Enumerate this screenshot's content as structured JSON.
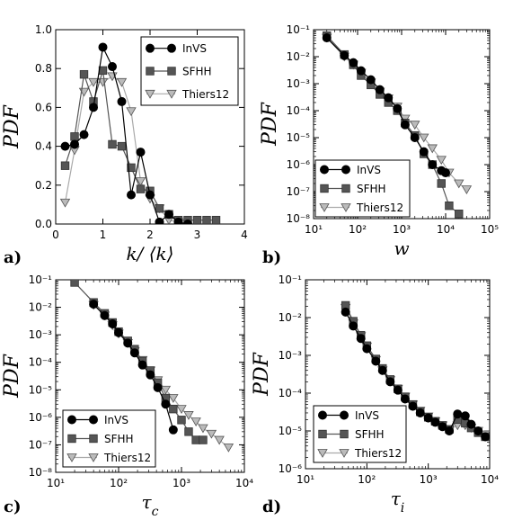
{
  "figure": {
    "ylabel_text": "PDF"
  },
  "colors": {
    "InVS": "#000000",
    "SFHH": "#555555",
    "Thiers12": "#bbbbbb"
  },
  "chart_data": [
    {
      "type": "line",
      "panel": "a)",
      "xlabel": "k/ ⟨k⟩",
      "ylabel": "PDF",
      "x_scale": "linear",
      "y_scale": "linear",
      "xlim": [
        0,
        4
      ],
      "ylim": [
        0,
        1.0
      ],
      "x_ticks": [
        "0",
        "1",
        "2",
        "3",
        "4"
      ],
      "y_ticks": [
        "0.0",
        "0.2",
        "0.4",
        "0.6",
        "0.8",
        "1.0"
      ],
      "legend_position": "top-right",
      "series": [
        {
          "name": "InVS",
          "marker": "circle",
          "x": [
            0.2,
            0.4,
            0.6,
            0.8,
            1.0,
            1.2,
            1.4,
            1.6,
            1.8,
            2.0,
            2.2,
            2.4,
            2.6,
            2.8
          ],
          "y": [
            0.4,
            0.41,
            0.46,
            0.6,
            0.91,
            0.81,
            0.63,
            0.15,
            0.37,
            0.15,
            0.01,
            0.05,
            0.01,
            0.0
          ]
        },
        {
          "name": "SFHH",
          "marker": "square",
          "x": [
            0.2,
            0.4,
            0.6,
            0.8,
            1.0,
            1.2,
            1.4,
            1.6,
            1.8,
            2.0,
            2.2,
            2.4,
            2.6,
            2.8,
            3.0,
            3.2,
            3.4
          ],
          "y": [
            0.3,
            0.45,
            0.77,
            0.63,
            0.79,
            0.41,
            0.4,
            0.29,
            0.18,
            0.17,
            0.08,
            0.05,
            0.02,
            0.02,
            0.02,
            0.02,
            0.02
          ]
        },
        {
          "name": "Thiers12",
          "marker": "triangle-down",
          "x": [
            0.2,
            0.4,
            0.6,
            0.8,
            1.0,
            1.2,
            1.4,
            1.6,
            1.8,
            2.0,
            2.2,
            2.4,
            2.6
          ],
          "y": [
            0.11,
            0.38,
            0.68,
            0.73,
            0.73,
            0.76,
            0.73,
            0.58,
            0.22,
            0.13,
            0.08,
            0.02,
            0.01
          ]
        }
      ]
    },
    {
      "type": "line",
      "panel": "b)",
      "xlabel": "w",
      "ylabel": "PDF",
      "x_scale": "log",
      "y_scale": "log",
      "xlim": [
        10,
        100000
      ],
      "ylim": [
        1e-08,
        0.1
      ],
      "x_ticks": [
        "10¹",
        "10²",
        "10³",
        "10⁴",
        "10⁵"
      ],
      "y_ticks": [
        "10⁻⁸",
        "10⁻⁷",
        "10⁻⁶",
        "10⁻⁵",
        "10⁻⁴",
        "10⁻³",
        "10⁻²",
        "10⁻¹"
      ],
      "legend_position": "bottom-left",
      "series": [
        {
          "name": "InVS",
          "marker": "circle",
          "x": [
            20,
            50,
            80,
            120,
            200,
            320,
            500,
            800,
            1200,
            2000,
            3200,
            5000,
            8000,
            10000
          ],
          "y": [
            0.05,
            0.011,
            0.006,
            0.003,
            0.0014,
            0.0006,
            0.0003,
            0.00012,
            3e-05,
            1e-05,
            3e-06,
            1e-06,
            6e-07,
            5e-07
          ]
        },
        {
          "name": "SFHH",
          "marker": "square",
          "x": [
            20,
            50,
            80,
            120,
            200,
            320,
            500,
            800,
            1200,
            2000,
            3200,
            5000,
            8000,
            12000,
            20000
          ],
          "y": [
            0.06,
            0.012,
            0.005,
            0.002,
            0.0009,
            0.0004,
            0.0002,
            0.0001,
            3.5e-05,
            1.2e-05,
            2.5e-06,
            1e-06,
            2e-07,
            3e-08,
            1.5e-08
          ]
        },
        {
          "name": "Thiers12",
          "marker": "triangle-down",
          "x": [
            20,
            50,
            80,
            120,
            200,
            320,
            500,
            800,
            1200,
            2000,
            3200,
            5000,
            8000,
            12000,
            20000,
            30000
          ],
          "y": [
            0.05,
            0.01,
            0.005,
            0.0025,
            0.0011,
            0.0005,
            0.00028,
            0.00014,
            5e-05,
            3e-05,
            1e-05,
            4e-06,
            1.5e-06,
            5e-07,
            2e-07,
            1.2e-07
          ]
        }
      ]
    },
    {
      "type": "line",
      "panel": "c)",
      "xlabel": "τ_c",
      "ylabel": "PDF",
      "x_scale": "log",
      "y_scale": "log",
      "xlim": [
        10,
        10000
      ],
      "ylim": [
        1e-08,
        0.1
      ],
      "x_ticks": [
        "10¹",
        "10²",
        "10³",
        "10⁴"
      ],
      "y_ticks": [
        "10⁻⁸",
        "10⁻⁷",
        "10⁻⁶",
        "10⁻⁵",
        "10⁻⁴",
        "10⁻³",
        "10⁻²",
        "10⁻¹"
      ],
      "legend_position": "bottom-left",
      "series": [
        {
          "name": "InVS",
          "marker": "circle",
          "x": [
            40,
            60,
            80,
            100,
            140,
            180,
            240,
            320,
            420,
            560,
            740
          ],
          "y": [
            0.013,
            0.005,
            0.0025,
            0.0012,
            0.0005,
            0.00022,
            8e-05,
            3.5e-05,
            1.2e-05,
            3e-06,
            3.5e-07
          ]
        },
        {
          "name": "SFHH",
          "marker": "square",
          "x": [
            20,
            40,
            60,
            80,
            100,
            140,
            180,
            240,
            320,
            420,
            560,
            740,
            1000,
            1300,
            1700,
            2200
          ],
          "y": [
            0.08,
            0.015,
            0.006,
            0.0028,
            0.0013,
            0.0006,
            0.0003,
            0.00011,
            5e-05,
            1.8e-05,
            5e-06,
            2e-06,
            8e-07,
            3e-07,
            1.5e-07,
            1.5e-07
          ]
        },
        {
          "name": "Thiers12",
          "marker": "triangle-down",
          "x": [
            40,
            60,
            80,
            100,
            140,
            180,
            240,
            320,
            420,
            560,
            740,
            1000,
            1300,
            1700,
            2200,
            3000,
            4000,
            5600
          ],
          "y": [
            0.012,
            0.005,
            0.0022,
            0.0011,
            0.0005,
            0.00025,
            0.00012,
            5e-05,
            2.2e-05,
            1e-05,
            5e-06,
            2e-06,
            1.2e-06,
            7e-07,
            4e-07,
            2.5e-07,
            1.5e-07,
            8e-08
          ]
        }
      ]
    },
    {
      "type": "line",
      "panel": "d)",
      "xlabel": "τ_i",
      "ylabel": "PDF",
      "x_scale": "log",
      "y_scale": "log",
      "xlim": [
        10,
        10000
      ],
      "ylim": [
        1e-06,
        0.1
      ],
      "x_ticks": [
        "10¹",
        "10²",
        "10³",
        "10⁴"
      ],
      "y_ticks": [
        "10⁻⁶",
        "10⁻⁵",
        "10⁻⁴",
        "10⁻³",
        "10⁻²",
        "10⁻¹"
      ],
      "legend_position": "bottom-left",
      "series": [
        {
          "name": "InVS",
          "marker": "circle",
          "x": [
            45,
            60,
            80,
            100,
            140,
            180,
            240,
            320,
            420,
            560,
            740,
            1000,
            1300,
            1700,
            2200,
            3000,
            4000,
            5000,
            6500,
            8500
          ],
          "y": [
            0.014,
            0.006,
            0.0028,
            0.0015,
            0.0007,
            0.0004,
            0.0002,
            0.00012,
            7e-05,
            4.5e-05,
            3e-05,
            2.2e-05,
            1.7e-05,
            1.3e-05,
            1e-05,
            2.8e-05,
            2.5e-05,
            1.5e-05,
            1e-05,
            7e-06
          ]
        },
        {
          "name": "SFHH",
          "marker": "square",
          "x": [
            45,
            60,
            80,
            100,
            140,
            180,
            240,
            320,
            420,
            560,
            740,
            1000,
            1300,
            1700,
            2200,
            3000,
            4000,
            5000,
            6500,
            8500
          ],
          "y": [
            0.021,
            0.008,
            0.0034,
            0.0018,
            0.0008,
            0.00045,
            0.00023,
            0.00013,
            8e-05,
            5e-05,
            3.2e-05,
            2.3e-05,
            1.8e-05,
            1.4e-05,
            1.1e-05,
            2e-05,
            1.6e-05,
            1.2e-05,
            9e-06,
            7e-06
          ]
        },
        {
          "name": "Thiers12",
          "marker": "triangle-down",
          "x": [
            45,
            60,
            80,
            100,
            140,
            180,
            240,
            320,
            420,
            560,
            740,
            1000,
            1300,
            1700,
            2200,
            3000,
            4000,
            5000,
            6500,
            8500
          ],
          "y": [
            0.018,
            0.007,
            0.0032,
            0.0017,
            0.00075,
            0.0004,
            0.00022,
            0.00013,
            8e-05,
            5e-05,
            3.4e-05,
            2.4e-05,
            1.8e-05,
            1.4e-05,
            1.1e-05,
            1.4e-05,
            1.4e-05,
            1.2e-05,
            1e-05,
            8e-06
          ]
        }
      ]
    }
  ]
}
